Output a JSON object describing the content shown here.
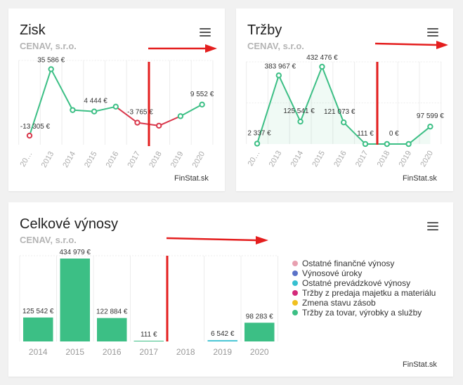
{
  "cards": {
    "zisk": {
      "title": "Zisk",
      "subtitle": "CENAV, s.r.o.",
      "footer": "FinStat.sk"
    },
    "trzby": {
      "title": "Tržby",
      "subtitle": "CENAV, s.r.o.",
      "footer": "FinStat.sk"
    },
    "vynosy": {
      "title": "Celkové výnosy",
      "subtitle": "CENAV, s.r.o.",
      "footer": "FinStat.sk"
    }
  },
  "legend": [
    {
      "label": "Ostatné finančné výnosy",
      "color": "#e8a0b0"
    },
    {
      "label": "Výnosové úroky",
      "color": "#5b72c8"
    },
    {
      "label": "Ostatné prevádzkové výnosy",
      "color": "#36c0d0"
    },
    {
      "label": "Tržby z predaja majetku a materiálu",
      "color": "#d42a7a"
    },
    {
      "label": "Zmena stavu zásob",
      "color": "#f0c020"
    },
    {
      "label": "Tržby za tovar, výrobky a služby",
      "color": "#3cbf85"
    }
  ],
  "chart_data": [
    {
      "type": "line",
      "title": "Zisk",
      "categories": [
        "20…",
        "2013",
        "2014",
        "2015",
        "2016",
        "2017",
        "2018",
        "2019",
        "2020"
      ],
      "values": [
        -13305,
        35586,
        5500,
        4444,
        8000,
        -3765,
        -6000,
        1000,
        9552
      ],
      "labels": [
        "-13 305 €",
        "35 586 €",
        "",
        "4 444 €",
        "",
        "-3 765 €",
        "",
        "",
        "9 552 €"
      ],
      "positive_color": "#3cbf85",
      "negative_color": "#d9374b"
    },
    {
      "type": "area",
      "title": "Tržby",
      "categories": [
        "20…",
        "2013",
        "2014",
        "2015",
        "2016",
        "2017",
        "2018",
        "2019",
        "2020"
      ],
      "values": [
        2337,
        383967,
        125541,
        432476,
        121073,
        111,
        0,
        0,
        97599
      ],
      "labels": [
        "2 337 €",
        "383 967 €",
        "125 541 €",
        "432 476 €",
        "121 073 €",
        "111 €",
        "0 €",
        "",
        "97 599 €"
      ],
      "color": "#3cbf85"
    },
    {
      "type": "bar",
      "title": "Celkové výnosy",
      "categories": [
        "2014",
        "2015",
        "2016",
        "2017",
        "2018",
        "2019",
        "2020"
      ],
      "values": [
        125542,
        434979,
        122884,
        111,
        0,
        6542,
        98283
      ],
      "labels": [
        "125 542 €",
        "434 979 €",
        "122 884 €",
        "111 €",
        "",
        "6 542 €",
        "98 283 €"
      ],
      "colors": [
        "#3cbf85",
        "#3cbf85",
        "#3cbf85",
        "#3cbf85",
        "#3cbf85",
        "#36c0d0",
        "#3cbf85"
      ]
    }
  ]
}
